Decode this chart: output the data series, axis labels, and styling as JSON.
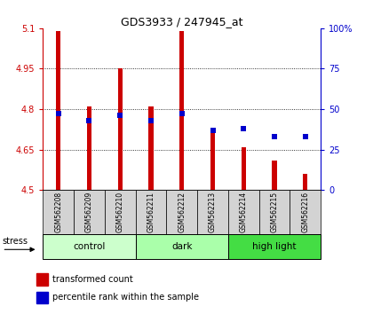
{
  "title": "GDS3933 / 247945_at",
  "samples": [
    "GSM562208",
    "GSM562209",
    "GSM562210",
    "GSM562211",
    "GSM562212",
    "GSM562213",
    "GSM562214",
    "GSM562215",
    "GSM562216"
  ],
  "bar_bottom": 4.5,
  "bar_tops": [
    5.09,
    4.81,
    4.95,
    4.81,
    5.09,
    4.72,
    4.66,
    4.61,
    4.56
  ],
  "percentile_values": [
    47,
    43,
    46,
    43,
    47,
    37,
    38,
    33,
    33
  ],
  "ylim_left": [
    4.5,
    5.1
  ],
  "ylim_right": [
    0,
    100
  ],
  "yticks_left": [
    4.5,
    4.65,
    4.8,
    4.95,
    5.1
  ],
  "yticks_right": [
    0,
    25,
    50,
    75,
    100
  ],
  "ytick_labels_left": [
    "4.5",
    "4.65",
    "4.8",
    "4.95",
    "5.1"
  ],
  "ytick_labels_right": [
    "0",
    "25",
    "50",
    "75",
    "100%"
  ],
  "bar_color": "#cc0000",
  "dot_color": "#0000cc",
  "left_tick_color": "#cc0000",
  "right_tick_color": "#0000cc",
  "title_color": "#000000",
  "bar_width": 0.15,
  "dot_size": 18,
  "group_info": [
    {
      "label": "control",
      "start": 0,
      "end": 2,
      "color": "#ccffcc"
    },
    {
      "label": "dark",
      "start": 3,
      "end": 5,
      "color": "#aaffaa"
    },
    {
      "label": "high light",
      "start": 6,
      "end": 8,
      "color": "#44dd44"
    }
  ]
}
